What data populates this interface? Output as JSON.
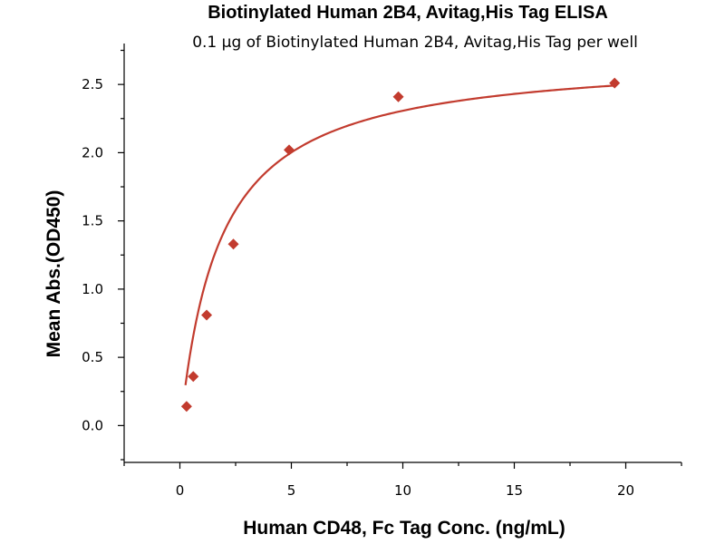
{
  "chart_data": {
    "type": "scatter",
    "title": "Biotinylated Human 2B4, Avitag,His Tag ELISA",
    "subtitle": "0.1 µg of Biotinylated Human 2B4, Avitag,His Tag per well",
    "xlabel": "Human CD48, Fc Tag Conc. (ng/mL)",
    "ylabel": "Mean Abs.(OD450)",
    "xlim": [
      -2.5,
      22.5
    ],
    "ylim": [
      -0.27,
      2.8
    ],
    "x_ticks": [
      0,
      5,
      10,
      15,
      20
    ],
    "x_tick_labels": [
      "0",
      "5",
      "10",
      "15",
      "20"
    ],
    "y_ticks": [
      0.0,
      0.5,
      1.0,
      1.5,
      2.0,
      2.5
    ],
    "y_tick_labels": [
      "0.0",
      "0.5",
      "1.0",
      "1.5",
      "2.0",
      "2.5"
    ],
    "grid": false,
    "color": "#c23b2e",
    "series": [
      {
        "x": [
          0.3,
          0.6,
          1.2,
          2.4,
          4.9,
          9.8,
          19.5
        ],
        "y": [
          0.14,
          0.36,
          0.81,
          1.33,
          2.02,
          2.41,
          2.51
        ],
        "marker": "diamond",
        "fit": "hyperbolic"
      }
    ]
  }
}
